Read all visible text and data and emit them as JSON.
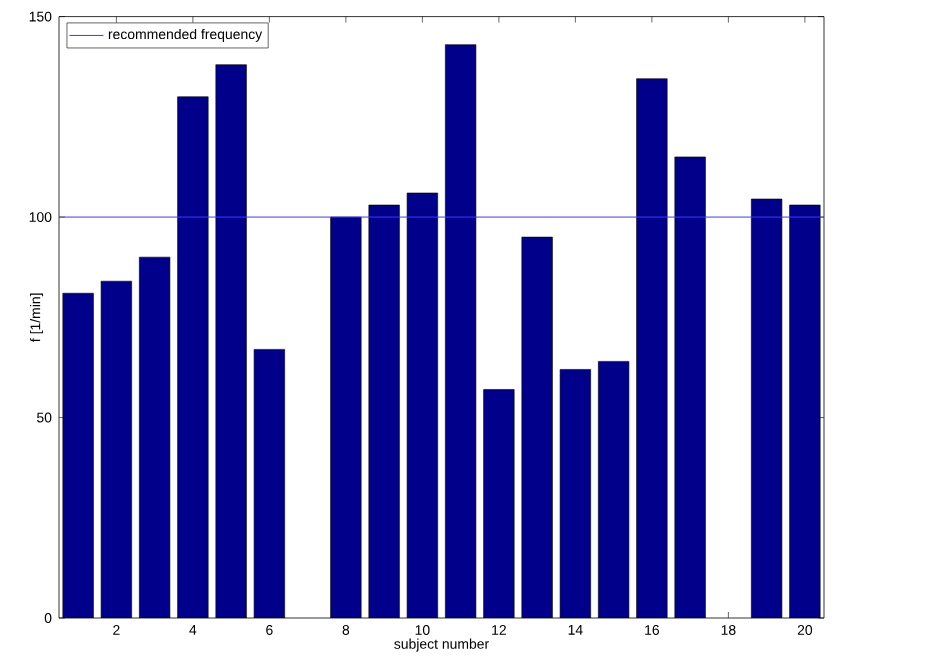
{
  "chart_data": {
    "type": "bar",
    "xlabel": "subject number",
    "ylabel": "f [1/min]",
    "x": [
      1,
      2,
      3,
      4,
      5,
      6,
      7,
      8,
      9,
      10,
      11,
      12,
      13,
      14,
      15,
      16,
      17,
      18,
      19,
      20
    ],
    "values": [
      81,
      84,
      90,
      130,
      138,
      67,
      null,
      100,
      103,
      106,
      143,
      57,
      95,
      62,
      64,
      134.5,
      115,
      null,
      104.5,
      103
    ],
    "color": "#00008b",
    "xlim": [
      0.5,
      20.5
    ],
    "xticks": [
      2,
      4,
      6,
      8,
      10,
      12,
      14,
      16,
      18,
      20
    ],
    "ylim": [
      0,
      150
    ],
    "yticks": [
      0,
      50,
      100,
      150
    ],
    "ref_lines": [
      {
        "axis": "y",
        "value": 100,
        "label": "recommended frequency",
        "color": "#3a3aff"
      }
    ],
    "legend": "top left"
  }
}
